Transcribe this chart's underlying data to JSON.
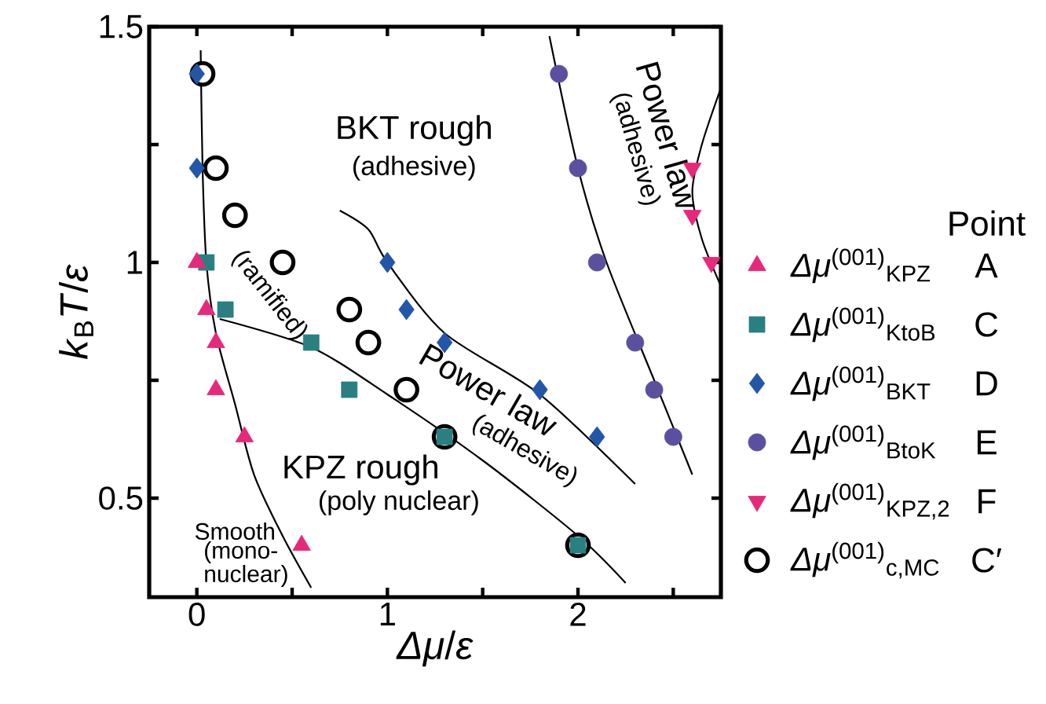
{
  "chart_data": {
    "type": "scatter",
    "xlabel": "*Δμ*/*ε*",
    "ylabel": "*k*$_{B}$*T*/*ε*",
    "legend_title": "Point",
    "legend": "right",
    "xlim": [
      -0.25,
      2.75
    ],
    "ylim": [
      0.29,
      1.5
    ],
    "xticks": [
      0,
      {
        "value": 0.5,
        "label": null
      },
      1,
      {
        "value": 1.5,
        "label": null
      },
      2,
      {
        "value": 2.5,
        "label": null
      }
    ],
    "yticks": [
      0.5,
      {
        "value": 0.75,
        "label": null
      },
      1,
      {
        "value": 1.25,
        "label": null
      },
      1.5
    ],
    "series": [
      {
        "type": "line",
        "color": "#000000",
        "marker": "none",
        "x": [
          0.02,
          0.03,
          0.05,
          0.1,
          0.2,
          0.3,
          0.45,
          0.6
        ],
        "values": [
          1.45,
          1.2,
          1.0,
          0.85,
          0.7,
          0.55,
          0.42,
          0.31
        ]
      },
      {
        "type": "line",
        "color": "#000000",
        "marker": "none",
        "x": [
          0.12,
          0.6,
          1.0,
          1.5,
          2.0,
          2.25
        ],
        "values": [
          0.88,
          0.82,
          0.72,
          0.58,
          0.42,
          0.32
        ]
      },
      {
        "type": "line",
        "color": "#000000",
        "marker": "none",
        "x": [
          0.75,
          0.9,
          1.0,
          1.3,
          1.8,
          2.3
        ],
        "values": [
          1.11,
          1.07,
          1.0,
          0.85,
          0.72,
          0.53
        ]
      },
      {
        "type": "line",
        "color": "#000000",
        "marker": "none",
        "x": [
          1.85,
          2.0,
          2.15,
          2.4,
          2.6
        ],
        "values": [
          1.48,
          1.2,
          1.0,
          0.75,
          0.55
        ]
      },
      {
        "type": "line",
        "color": "#000000",
        "marker": "none",
        "x": [
          2.75,
          2.65,
          2.6,
          2.65,
          2.75
        ],
        "values": [
          1.37,
          1.25,
          1.15,
          1.05,
          0.95
        ]
      },
      {
        "name": "*Δμ*$^{(001)}$$_{KPZ}$",
        "color": "#e8287a",
        "marker": "triangle",
        "x": [
          0,
          0.05,
          0.1,
          0.1,
          0.25,
          0.55
        ],
        "values": [
          1.0,
          0.9,
          0.83,
          0.73,
          0.63,
          0.4
        ]
      },
      {
        "name": "*Δμ*$^{(001)}$$_{KtoB}$",
        "color": "#2a8080",
        "marker": "square",
        "x": [
          0.05,
          0.15,
          0.6,
          0.8,
          1.3,
          2.0
        ],
        "values": [
          1.0,
          0.9,
          0.83,
          0.73,
          0.63,
          0.4
        ]
      },
      {
        "name": "*Δμ*$^{(001)}$$_{BKT}$",
        "color": "#2356a8",
        "marker": "diamond",
        "x": [
          0,
          0,
          1.0,
          1.1,
          1.3,
          1.8,
          2.1
        ],
        "values": [
          1.4,
          1.2,
          1.0,
          0.9,
          0.83,
          0.73,
          0.63
        ]
      },
      {
        "name": "*Δμ*$^{(001)}$$_{BtoK}$",
        "color": "#5b4fa0",
        "marker": "circle",
        "x": [
          1.9,
          2.0,
          2.1,
          2.3,
          2.4,
          2.5
        ],
        "values": [
          1.4,
          1.2,
          1.0,
          0.83,
          0.73,
          0.63
        ]
      },
      {
        "name": "*Δμ*$^{(001)}$$_{KPZ,2}$",
        "color": "#e8287a",
        "marker": "triangle-down",
        "x": [
          2.6,
          2.6,
          2.7
        ],
        "values": [
          1.2,
          1.1,
          1.0
        ]
      },
      {
        "name": "*Δμ*$^{(001)}$$_{c,MC}$",
        "color": "#ffffff",
        "marker": "circle",
        "x": [
          0.03,
          0.1,
          0.2,
          0.45,
          0.8,
          0.9,
          1.1,
          1.3,
          2.0
        ],
        "values": [
          1.4,
          1.2,
          1.1,
          1.0,
          0.9,
          0.83,
          0.73,
          0.63,
          0.4
        ]
      }
    ],
    "annotations": [
      "BKT rough",
      "(adhesive)",
      "(ramified)",
      "Power law",
      "(adhesive)",
      "Power law",
      "(adhesive)",
      "KPZ rough",
      "(poly nuclear)",
      "Smooth",
      "(mono-nuclear)",
      "A",
      "C",
      "D",
      "E",
      "F",
      "C′"
    ]
  }
}
